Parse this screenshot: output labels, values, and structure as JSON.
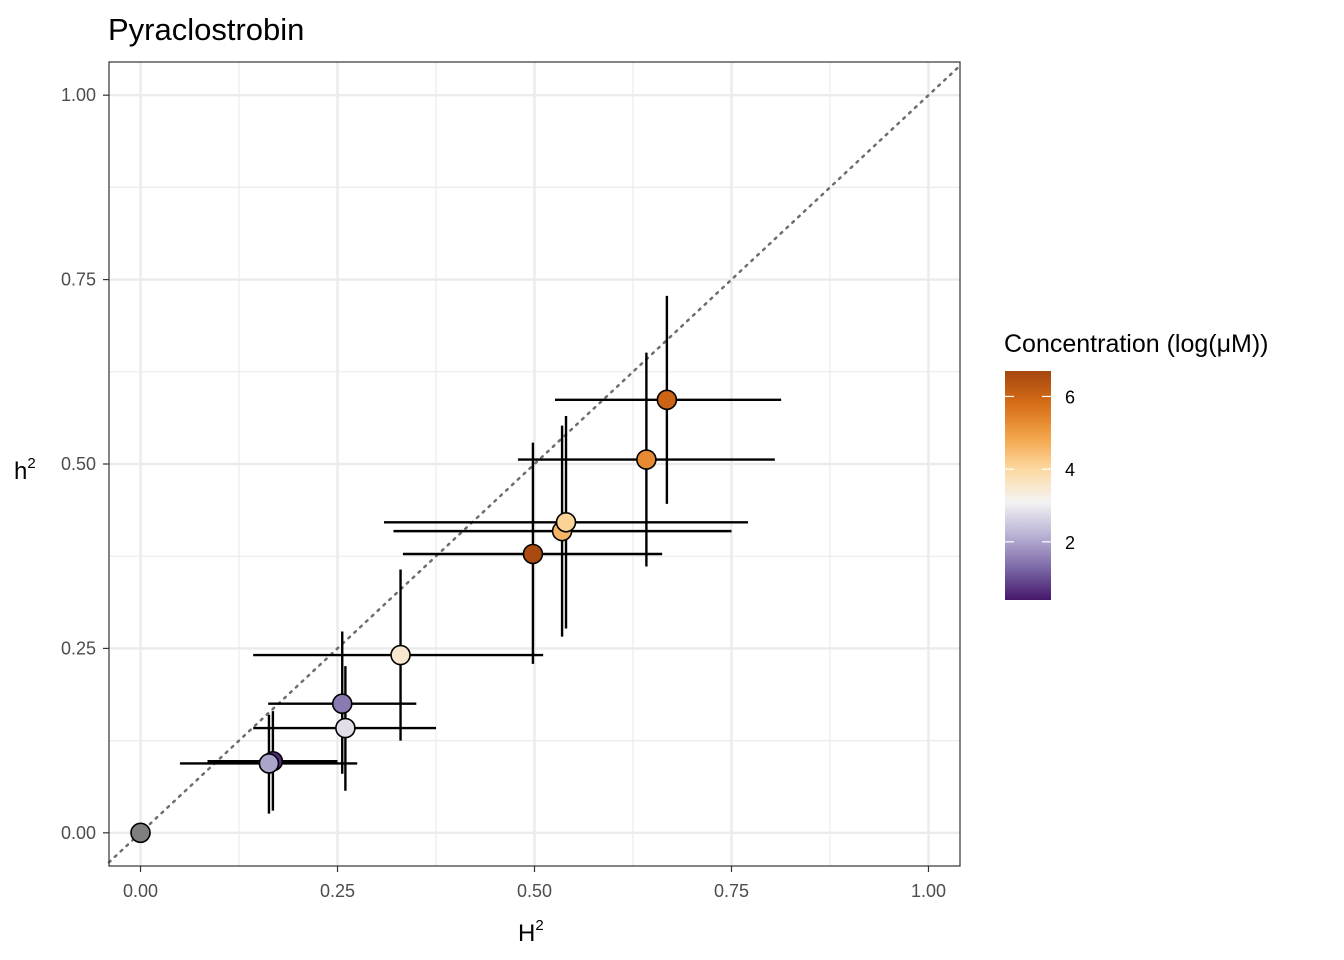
{
  "chart_data": {
    "type": "scatter",
    "title": "Pyraclostrobin",
    "xlabel": {
      "base": "H",
      "sup": "2"
    },
    "ylabel": {
      "base": "h",
      "sup": "2"
    },
    "xlim": [
      -0.04,
      1.04
    ],
    "ylim": [
      -0.045,
      1.045
    ],
    "xticks": [
      0.0,
      0.25,
      0.5,
      0.75,
      1.0
    ],
    "xtick_labels": [
      "0.00",
      "0.25",
      "0.50",
      "0.75",
      "1.00"
    ],
    "yticks": [
      0.0,
      0.25,
      0.5,
      0.75,
      1.0
    ],
    "ytick_labels": [
      "0.00",
      "0.25",
      "0.50",
      "0.75",
      "1.00"
    ],
    "reference_line": "y = x (dotted)",
    "grid": true,
    "points": [
      {
        "H2": 0.0,
        "h2": 0.0,
        "xerr": [
          0.0,
          0.0
        ],
        "yerr": [
          0.0,
          0.0
        ],
        "concentration": null
      },
      {
        "H2": 0.168,
        "h2": 0.097,
        "xerr": [
          0.085,
          0.25
        ],
        "yerr": [
          0.03,
          0.165
        ],
        "concentration": 0.6
      },
      {
        "H2": 0.163,
        "h2": 0.094,
        "xerr": [
          0.05,
          0.275
        ],
        "yerr": [
          0.026,
          0.16
        ],
        "concentration": 2.0
      },
      {
        "H2": 0.256,
        "h2": 0.175,
        "xerr": [
          0.162,
          0.35
        ],
        "yerr": [
          0.08,
          0.273
        ],
        "concentration": 1.5
      },
      {
        "H2": 0.26,
        "h2": 0.142,
        "xerr": [
          0.143,
          0.375
        ],
        "yerr": [
          0.057,
          0.226
        ],
        "concentration": 2.8
      },
      {
        "H2": 0.33,
        "h2": 0.241,
        "xerr": [
          0.143,
          0.511
        ],
        "yerr": [
          0.125,
          0.357
        ],
        "concentration": 3.5
      },
      {
        "H2": 0.498,
        "h2": 0.378,
        "xerr": [
          0.333,
          0.662
        ],
        "yerr": [
          0.229,
          0.529
        ],
        "concentration": 6.6
      },
      {
        "H2": 0.535,
        "h2": 0.409,
        "xerr": [
          0.321,
          0.75
        ],
        "yerr": [
          0.266,
          0.552
        ],
        "concentration": 4.6
      },
      {
        "H2": 0.54,
        "h2": 0.421,
        "xerr": [
          0.309,
          0.771
        ],
        "yerr": [
          0.277,
          0.565
        ],
        "concentration": 4.1
      },
      {
        "H2": 0.642,
        "h2": 0.506,
        "xerr": [
          0.479,
          0.805
        ],
        "yerr": [
          0.361,
          0.651
        ],
        "concentration": 5.3
      },
      {
        "H2": 0.668,
        "h2": 0.587,
        "xerr": [
          0.526,
          0.813
        ],
        "yerr": [
          0.446,
          0.728
        ],
        "concentration": 6.0
      }
    ],
    "legend": {
      "title": "Concentration (log(μM))",
      "type": "colorbar",
      "range": [
        0.4,
        6.7
      ],
      "ticks": [
        2,
        4,
        6
      ],
      "tick_labels": [
        "2",
        "4",
        "6"
      ],
      "colors": [
        "#45176b",
        "#7d6aa8",
        "#bbb4d6",
        "#f4f3f3",
        "#fcd9a1",
        "#f2a348",
        "#d66d17",
        "#a4460f"
      ],
      "placement": "right",
      "na_color": "#7f7f7f"
    }
  }
}
